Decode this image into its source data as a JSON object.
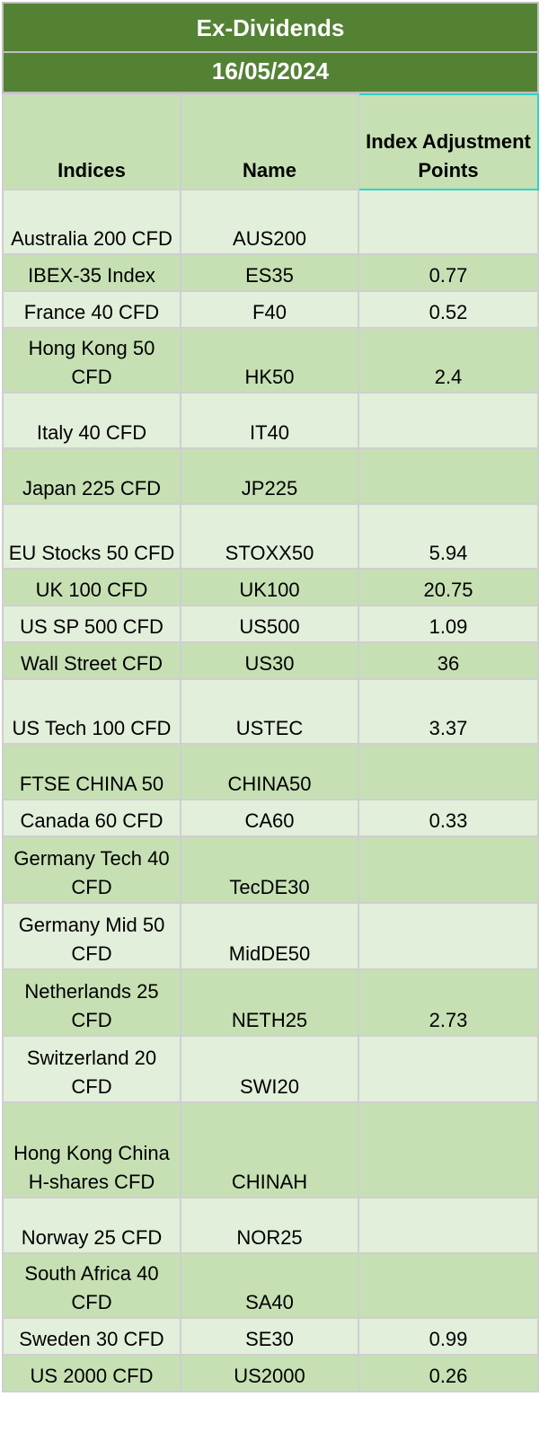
{
  "title": "Ex-Dividends",
  "date": "16/05/2024",
  "headers": {
    "indices": "Indices",
    "name": "Name",
    "points": "Index Adjustment Points"
  },
  "rows": [
    {
      "index": "Australia 200 CFD",
      "name": "AUS200",
      "points": ""
    },
    {
      "index": "IBEX-35 Index",
      "name": "ES35",
      "points": "0.77"
    },
    {
      "index": "France 40 CFD",
      "name": "F40",
      "points": "0.52"
    },
    {
      "index": "Hong Kong 50 CFD",
      "name": "HK50",
      "points": "2.4"
    },
    {
      "index": "Italy 40 CFD",
      "name": "IT40",
      "points": ""
    },
    {
      "index": "Japan 225 CFD",
      "name": "JP225",
      "points": ""
    },
    {
      "index": "EU Stocks 50 CFD",
      "name": "STOXX50",
      "points": "5.94"
    },
    {
      "index": "UK 100 CFD",
      "name": "UK100",
      "points": "20.75"
    },
    {
      "index": "US SP 500 CFD",
      "name": "US500",
      "points": "1.09"
    },
    {
      "index": "Wall Street CFD",
      "name": "US30",
      "points": "36"
    },
    {
      "index": "US Tech 100 CFD",
      "name": "USTEC",
      "points": "3.37"
    },
    {
      "index": "FTSE CHINA 50",
      "name": "CHINA50",
      "points": ""
    },
    {
      "index": "Canada 60 CFD",
      "name": "CA60",
      "points": "0.33"
    },
    {
      "index": "Germany Tech 40 CFD",
      "name": "TecDE30",
      "points": ""
    },
    {
      "index": "Germany Mid 50 CFD",
      "name": "MidDE50",
      "points": ""
    },
    {
      "index": "Netherlands 25 CFD",
      "name": "NETH25",
      "points": "2.73"
    },
    {
      "index": "Switzerland 20 CFD",
      "name": "SWI20",
      "points": ""
    },
    {
      "index": "Hong Kong China H-shares CFD",
      "name": "CHINAH",
      "points": ""
    },
    {
      "index": "Norway 25 CFD",
      "name": "NOR25",
      "points": ""
    },
    {
      "index": "South Africa 40 CFD",
      "name": "SA40",
      "points": ""
    },
    {
      "index": "Sweden 30 CFD",
      "name": "SE30",
      "points": "0.99"
    },
    {
      "index": "US 2000 CFD",
      "name": "US2000",
      "points": "0.26"
    }
  ]
}
